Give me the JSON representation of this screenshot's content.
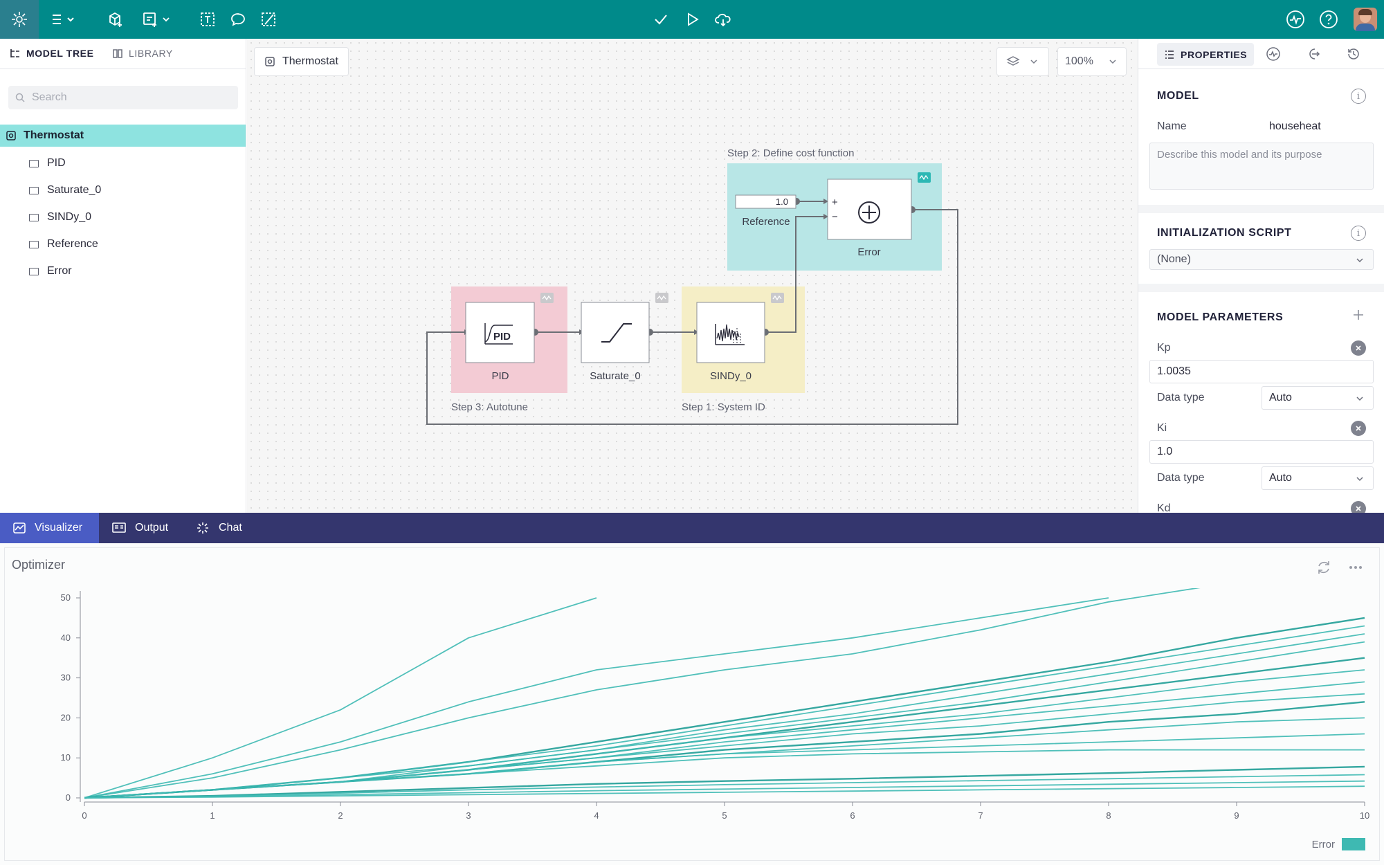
{
  "topbar": {
    "icons": [
      "app-logo-icon",
      "menu-icon",
      "add-block-icon",
      "add-submodel-icon",
      "text-box-icon",
      "comment-icon",
      "edit-annotation-icon",
      "check-icon",
      "play-icon",
      "cloud-upload-icon",
      "pulse-icon",
      "help-icon"
    ]
  },
  "left_panel": {
    "tabs": [
      {
        "label": "MODEL TREE",
        "icon": "tree-icon",
        "active": true
      },
      {
        "label": "LIBRARY",
        "icon": "book-icon",
        "active": false
      }
    ],
    "search_placeholder": "Search",
    "root": "Thermostat",
    "items": [
      "PID",
      "Saturate_0",
      "SINDy_0",
      "Reference",
      "Error"
    ]
  },
  "canvas": {
    "breadcrumb": "Thermostat",
    "zoom": "100%",
    "groups": {
      "cost": "Step 2: Define cost function",
      "autotune": "Step 3: Autotune",
      "sysid": "Step 1: System ID"
    },
    "blocks": {
      "reference_label": "Reference",
      "reference_value": "1.0",
      "error_label": "Error",
      "pid_label": "PID",
      "pid_icon_text": "PID",
      "saturate_label": "Saturate_0",
      "sindy_label": "SINDy_0",
      "plus": "+",
      "minus": "−"
    },
    "colors": {
      "cost_bg": "#b8e6e6",
      "autotune_bg": "#f3cbd4",
      "sysid_bg": "#f5eec6",
      "wire": "#6b6e74"
    }
  },
  "right_panel": {
    "tab_active": "PROPERTIES",
    "tab_icons": [
      "list-icon",
      "signal-icon",
      "export-icon",
      "history-icon"
    ],
    "model": {
      "title": "MODEL",
      "name_label": "Name",
      "name_value": "househeat",
      "description_placeholder": "Describe this model and its purpose"
    },
    "init_script": {
      "title": "INITIALIZATION SCRIPT",
      "value": "(None)"
    },
    "params": {
      "title": "MODEL PARAMETERS",
      "items": [
        {
          "name": "Kp",
          "value": "1.0035",
          "dtype_label": "Data type",
          "dtype": "Auto"
        },
        {
          "name": "Ki",
          "value": "1.0",
          "dtype_label": "Data type",
          "dtype": "Auto"
        },
        {
          "name": "Kd"
        }
      ]
    }
  },
  "bottom_tabs": [
    {
      "label": "Visualizer",
      "icon": "chart-icon",
      "active": true
    },
    {
      "label": "Output",
      "icon": "terminal-icon",
      "active": false
    },
    {
      "label": "Chat",
      "icon": "chat-icon",
      "active": false
    }
  ],
  "visualizer": {
    "title": "Optimizer",
    "legend": "Error",
    "accent": "#3eb9b2"
  },
  "chart_data": {
    "type": "line",
    "title": "Optimizer",
    "xlabel": "",
    "ylabel": "",
    "xlim": [
      0,
      10
    ],
    "ylim": [
      0,
      50
    ],
    "x_ticks": [
      0,
      1,
      2,
      3,
      4,
      5,
      6,
      7,
      8,
      9,
      10
    ],
    "y_ticks": [
      0,
      10,
      20,
      30,
      40,
      50
    ],
    "legend": {
      "entries": [
        "Error"
      ],
      "position": "bottom-right"
    },
    "x": [
      0,
      1,
      2,
      3,
      4,
      5,
      6,
      7,
      8,
      9,
      10
    ],
    "series": [
      {
        "values": [
          0,
          10,
          22,
          40,
          50,
          null,
          null,
          null,
          null,
          null,
          null
        ]
      },
      {
        "values": [
          0,
          6,
          14,
          24,
          32,
          36,
          40,
          45,
          50,
          null,
          null
        ]
      },
      {
        "values": [
          0,
          5,
          12,
          20,
          27,
          32,
          36,
          42,
          49,
          54,
          null
        ]
      },
      {
        "values": [
          0,
          2,
          5,
          9,
          14,
          19,
          24,
          29,
          34,
          40,
          45
        ]
      },
      {
        "values": [
          0,
          2,
          5,
          9,
          13,
          18,
          23,
          28,
          33,
          38,
          43
        ]
      },
      {
        "values": [
          0,
          2,
          5,
          8,
          12,
          17,
          21,
          26,
          31,
          36,
          41
        ]
      },
      {
        "values": [
          0,
          2,
          4,
          8,
          12,
          16,
          20,
          24,
          29,
          34,
          39
        ]
      },
      {
        "values": [
          0,
          2,
          4,
          7,
          11,
          15,
          19,
          23,
          27,
          31,
          35
        ]
      },
      {
        "values": [
          0,
          2,
          4,
          7,
          11,
          15,
          18,
          21,
          25,
          29,
          32
        ]
      },
      {
        "values": [
          0,
          2,
          4,
          7,
          10,
          14,
          17,
          20,
          23,
          26,
          29
        ]
      },
      {
        "values": [
          0,
          2,
          4,
          7,
          10,
          13,
          16,
          18,
          21,
          24,
          26
        ]
      },
      {
        "values": [
          0,
          2,
          4,
          6,
          9,
          12,
          14,
          16,
          19,
          21,
          24
        ]
      },
      {
        "values": [
          0,
          2,
          4,
          6,
          9,
          11,
          13,
          15,
          17,
          19,
          20
        ]
      },
      {
        "values": [
          0,
          2,
          4,
          6,
          9,
          11,
          12,
          13,
          14,
          15,
          16
        ]
      },
      {
        "values": [
          0,
          2,
          4,
          6,
          8,
          10,
          11,
          11.5,
          12,
          12,
          12
        ]
      },
      {
        "values": [
          0,
          0.5,
          1.5,
          2.5,
          3.5,
          4.2,
          4.8,
          5.5,
          6.2,
          7,
          7.8
        ]
      },
      {
        "values": [
          0,
          0.4,
          1.2,
          2,
          2.7,
          3.3,
          3.8,
          4.3,
          4.8,
          5.3,
          5.8
        ]
      },
      {
        "values": [
          0,
          0.3,
          0.8,
          1.3,
          1.8,
          2.2,
          2.6,
          3,
          3.4,
          3.8,
          4.2
        ]
      },
      {
        "values": [
          0,
          0.2,
          0.5,
          0.8,
          1.1,
          1.4,
          1.7,
          2,
          2.3,
          2.6,
          2.9
        ]
      }
    ]
  }
}
